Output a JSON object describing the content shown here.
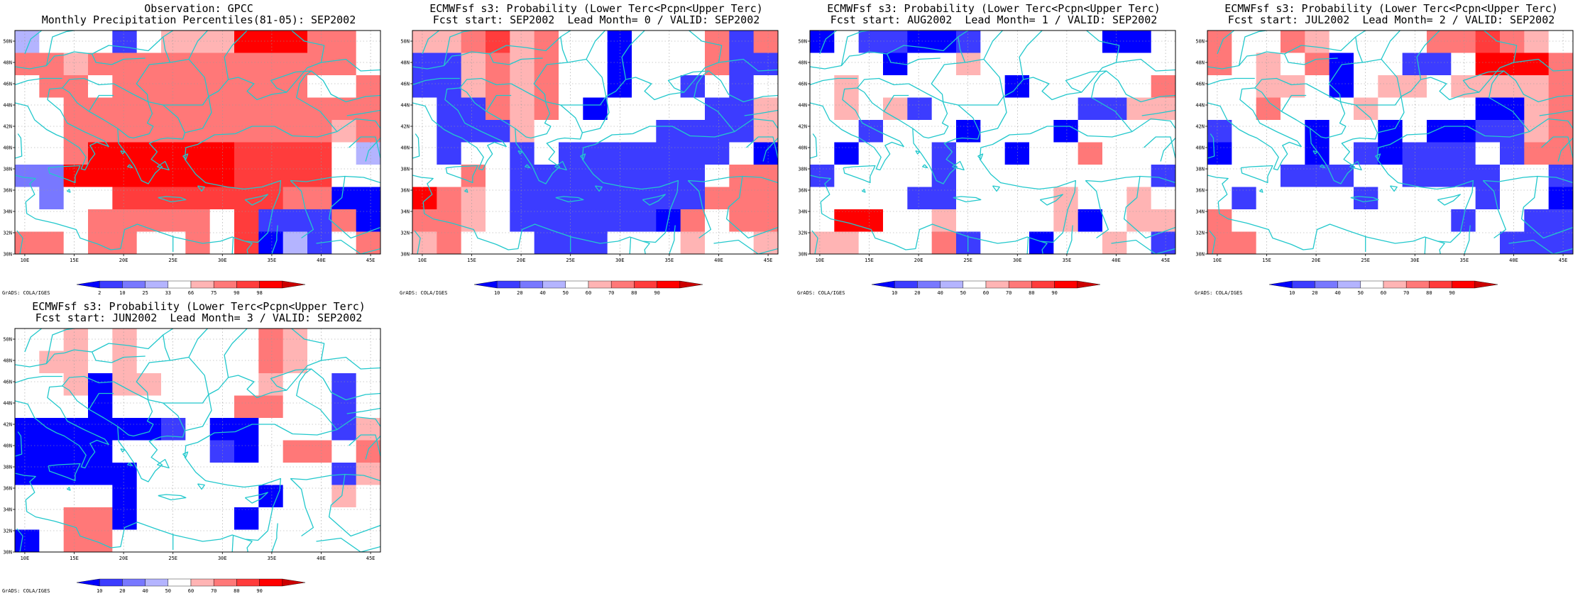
{
  "page": {
    "credit": "GrADS: COLA/IGES"
  },
  "axes": {
    "lon_labels": [
      "10E",
      "15E",
      "20E",
      "25E",
      "30E",
      "35E",
      "40E",
      "45E"
    ],
    "lat_labels": [
      "30N",
      "32N",
      "34N",
      "36N",
      "38N",
      "40N",
      "42N",
      "44N",
      "46N",
      "48N",
      "50N"
    ]
  },
  "colors": {
    "coast": "#22c8cc",
    "grid": "#9a9a9a",
    "levels": [
      "#0000ff",
      "#3c3cff",
      "#7878ff",
      "#b4b4ff",
      "#ffffff",
      "#ffb4b4",
      "#ff7878",
      "#ff3c3c",
      "#ff0000",
      "#cc0000"
    ]
  },
  "panels": [
    {
      "id": "obs",
      "title1": "Observation: GPCC",
      "title2": "Monthly Precipitation Percentiles(81-05): SEP2002",
      "colorbar": [
        "2",
        "10",
        "25",
        "33",
        "66",
        "75",
        "90",
        "98"
      ],
      "chart_data": {
        "type": "heatmap",
        "x_range": [
          9,
          46
        ],
        "y_range": [
          30,
          51
        ],
        "cols": 15,
        "rows": 10,
        "grid_rows_north_to_south": [
          [
            3,
            4,
            4,
            4,
            1,
            4,
            5,
            5,
            5,
            8,
            8,
            8,
            6,
            6,
            4
          ],
          [
            6,
            6,
            5,
            6,
            6,
            6,
            6,
            6,
            6,
            6,
            6,
            6,
            6,
            6,
            4
          ],
          [
            4,
            6,
            6,
            4,
            6,
            6,
            6,
            6,
            6,
            6,
            6,
            6,
            4,
            4,
            6
          ],
          [
            4,
            4,
            6,
            6,
            6,
            6,
            6,
            6,
            6,
            6,
            6,
            6,
            6,
            6,
            6
          ],
          [
            4,
            4,
            6,
            6,
            6,
            6,
            6,
            6,
            6,
            6,
            6,
            6,
            6,
            5,
            6
          ],
          [
            4,
            4,
            6,
            8,
            8,
            8,
            8,
            8,
            8,
            7,
            7,
            7,
            7,
            4,
            3
          ],
          [
            2,
            2,
            8,
            8,
            8,
            8,
            8,
            8,
            8,
            7,
            7,
            7,
            7,
            4,
            4
          ],
          [
            4,
            2,
            4,
            4,
            7,
            7,
            7,
            7,
            7,
            7,
            7,
            6,
            6,
            0,
            0
          ],
          [
            4,
            4,
            4,
            6,
            6,
            6,
            6,
            6,
            4,
            7,
            1,
            1,
            1,
            6,
            0
          ],
          [
            6,
            6,
            4,
            6,
            6,
            4,
            4,
            6,
            4,
            7,
            0,
            3,
            1,
            4,
            6
          ]
        ]
      }
    },
    {
      "id": "lead0",
      "title1": "ECMWFsf s3: Probability (Lower Terc<Pcpn<Upper Terc)",
      "title2": "Fcst start: SEP2002  Lead Month= 0 / VALID: SEP2002",
      "colorbar": [
        "10",
        "20",
        "40",
        "50",
        "60",
        "70",
        "80",
        "90"
      ],
      "chart_data": {
        "type": "heatmap",
        "x_range": [
          9,
          46
        ],
        "y_range": [
          30,
          51
        ],
        "cols": 15,
        "rows": 10,
        "grid_rows_north_to_south": [
          [
            5,
            5,
            6,
            7,
            5,
            6,
            4,
            4,
            0,
            4,
            4,
            4,
            6,
            1,
            6
          ],
          [
            1,
            1,
            5,
            6,
            5,
            6,
            4,
            4,
            0,
            4,
            4,
            4,
            6,
            1,
            1
          ],
          [
            1,
            1,
            5,
            6,
            5,
            6,
            4,
            4,
            0,
            4,
            4,
            1,
            4,
            1,
            4
          ],
          [
            4,
            1,
            1,
            6,
            5,
            6,
            4,
            0,
            4,
            4,
            4,
            4,
            1,
            1,
            5
          ],
          [
            4,
            1,
            1,
            1,
            5,
            4,
            4,
            4,
            4,
            4,
            1,
            1,
            1,
            1,
            5
          ],
          [
            4,
            1,
            4,
            4,
            1,
            4,
            1,
            1,
            1,
            1,
            1,
            1,
            1,
            4,
            0
          ],
          [
            4,
            4,
            6,
            4,
            1,
            1,
            1,
            1,
            1,
            1,
            1,
            1,
            4,
            6,
            6
          ],
          [
            8,
            6,
            5,
            4,
            1,
            1,
            1,
            1,
            1,
            1,
            1,
            1,
            6,
            6,
            6
          ],
          [
            6,
            6,
            5,
            4,
            1,
            1,
            1,
            1,
            1,
            1,
            0,
            6,
            4,
            6,
            6
          ],
          [
            5,
            6,
            4,
            4,
            4,
            1,
            1,
            1,
            4,
            4,
            4,
            5,
            4,
            4,
            5
          ]
        ]
      }
    },
    {
      "id": "lead1",
      "title1": "ECMWFsf s3: Probability (Lower Terc<Pcpn<Upper Terc)",
      "title2": "Fcst start: AUG2002  Lead Month= 1 / VALID: SEP2002",
      "colorbar": [
        "10",
        "20",
        "40",
        "50",
        "60",
        "70",
        "80",
        "90"
      ],
      "chart_data": {
        "type": "heatmap",
        "x_range": [
          9,
          46
        ],
        "y_range": [
          30,
          51
        ],
        "cols": 15,
        "rows": 10,
        "grid_rows_north_to_south": [
          [
            0,
            4,
            1,
            1,
            0,
            0,
            1,
            4,
            4,
            4,
            4,
            4,
            0,
            0,
            4
          ],
          [
            4,
            4,
            4,
            0,
            4,
            4,
            5,
            4,
            4,
            4,
            4,
            4,
            4,
            4,
            4
          ],
          [
            4,
            5,
            4,
            4,
            4,
            4,
            4,
            4,
            0,
            4,
            4,
            4,
            4,
            4,
            6
          ],
          [
            4,
            5,
            4,
            5,
            1,
            4,
            4,
            4,
            4,
            4,
            4,
            1,
            1,
            5,
            5
          ],
          [
            4,
            4,
            1,
            4,
            4,
            4,
            0,
            4,
            4,
            4,
            0,
            4,
            4,
            4,
            4
          ],
          [
            4,
            0,
            4,
            4,
            4,
            1,
            4,
            4,
            0,
            4,
            4,
            6,
            4,
            4,
            4
          ],
          [
            1,
            4,
            4,
            4,
            4,
            1,
            4,
            4,
            4,
            4,
            4,
            4,
            4,
            4,
            1
          ],
          [
            4,
            4,
            4,
            4,
            1,
            1,
            4,
            4,
            4,
            4,
            5,
            4,
            4,
            5,
            4
          ],
          [
            4,
            8,
            8,
            4,
            4,
            5,
            4,
            4,
            4,
            4,
            5,
            0,
            4,
            5,
            5
          ],
          [
            5,
            5,
            4,
            4,
            4,
            6,
            1,
            4,
            4,
            0,
            4,
            4,
            5,
            4,
            1
          ]
        ]
      }
    },
    {
      "id": "lead2",
      "title1": "ECMWFsf s3: Probability (Lower Terc<Pcpn<Upper Terc)",
      "title2": "Fcst start: JUL2002  Lead Month= 2 / VALID: SEP2002",
      "colorbar": [
        "10",
        "20",
        "40",
        "50",
        "60",
        "70",
        "80",
        "90"
      ],
      "chart_data": {
        "type": "heatmap",
        "x_range": [
          9,
          46
        ],
        "y_range": [
          30,
          51
        ],
        "cols": 15,
        "rows": 10,
        "grid_rows_north_to_south": [
          [
            6,
            4,
            4,
            6,
            5,
            4,
            4,
            4,
            4,
            6,
            6,
            7,
            6,
            5,
            4
          ],
          [
            6,
            4,
            5,
            4,
            6,
            0,
            4,
            4,
            1,
            1,
            4,
            8,
            8,
            8,
            6
          ],
          [
            4,
            4,
            5,
            5,
            4,
            0,
            4,
            5,
            5,
            4,
            5,
            5,
            5,
            5,
            6
          ],
          [
            4,
            4,
            6,
            4,
            4,
            4,
            5,
            4,
            4,
            4,
            4,
            0,
            0,
            5,
            6
          ],
          [
            1,
            4,
            4,
            4,
            0,
            4,
            4,
            0,
            4,
            0,
            0,
            1,
            1,
            5,
            6
          ],
          [
            0,
            4,
            4,
            4,
            0,
            4,
            1,
            0,
            1,
            1,
            1,
            4,
            1,
            6,
            6
          ],
          [
            4,
            4,
            4,
            1,
            1,
            1,
            4,
            4,
            1,
            1,
            1,
            1,
            4,
            4,
            1
          ],
          [
            4,
            1,
            4,
            4,
            4,
            4,
            1,
            4,
            4,
            4,
            4,
            1,
            4,
            4,
            0
          ],
          [
            6,
            4,
            4,
            4,
            4,
            4,
            4,
            4,
            4,
            4,
            1,
            4,
            4,
            1,
            1
          ],
          [
            6,
            6,
            4,
            4,
            4,
            4,
            4,
            4,
            4,
            4,
            4,
            4,
            1,
            1,
            1
          ]
        ]
      }
    },
    {
      "id": "lead3",
      "title1": "ECMWFsf s3: Probability (Lower Terc<Pcpn<Upper Terc)",
      "title2": "Fcst start: JUN2002  Lead Month= 3 / VALID: SEP2002",
      "colorbar": [
        "10",
        "20",
        "40",
        "50",
        "60",
        "70",
        "80",
        "90"
      ],
      "chart_data": {
        "type": "heatmap",
        "x_range": [
          9,
          46
        ],
        "y_range": [
          30,
          51
        ],
        "cols": 15,
        "rows": 10,
        "grid_rows_north_to_south": [
          [
            4,
            4,
            5,
            4,
            5,
            4,
            4,
            4,
            4,
            4,
            6,
            5,
            4,
            4,
            4
          ],
          [
            4,
            5,
            5,
            4,
            5,
            4,
            4,
            4,
            4,
            4,
            6,
            5,
            4,
            4,
            4
          ],
          [
            4,
            4,
            5,
            0,
            5,
            5,
            4,
            4,
            4,
            4,
            5,
            4,
            4,
            1,
            4
          ],
          [
            4,
            4,
            4,
            0,
            4,
            4,
            4,
            4,
            4,
            6,
            6,
            4,
            4,
            1,
            4
          ],
          [
            0,
            0,
            0,
            0,
            0,
            0,
            1,
            4,
            0,
            0,
            4,
            4,
            4,
            1,
            5
          ],
          [
            0,
            0,
            0,
            0,
            4,
            4,
            4,
            4,
            1,
            0,
            4,
            6,
            6,
            4,
            6
          ],
          [
            0,
            0,
            0,
            0,
            0,
            4,
            4,
            4,
            4,
            4,
            4,
            4,
            4,
            1,
            5
          ],
          [
            4,
            4,
            4,
            4,
            0,
            4,
            4,
            4,
            4,
            4,
            0,
            4,
            4,
            5,
            4
          ],
          [
            4,
            4,
            6,
            6,
            0,
            4,
            4,
            4,
            4,
            0,
            4,
            4,
            4,
            4,
            4
          ],
          [
            0,
            4,
            6,
            6,
            4,
            4,
            4,
            4,
            4,
            4,
            4,
            4,
            4,
            4,
            4
          ]
        ]
      }
    }
  ]
}
